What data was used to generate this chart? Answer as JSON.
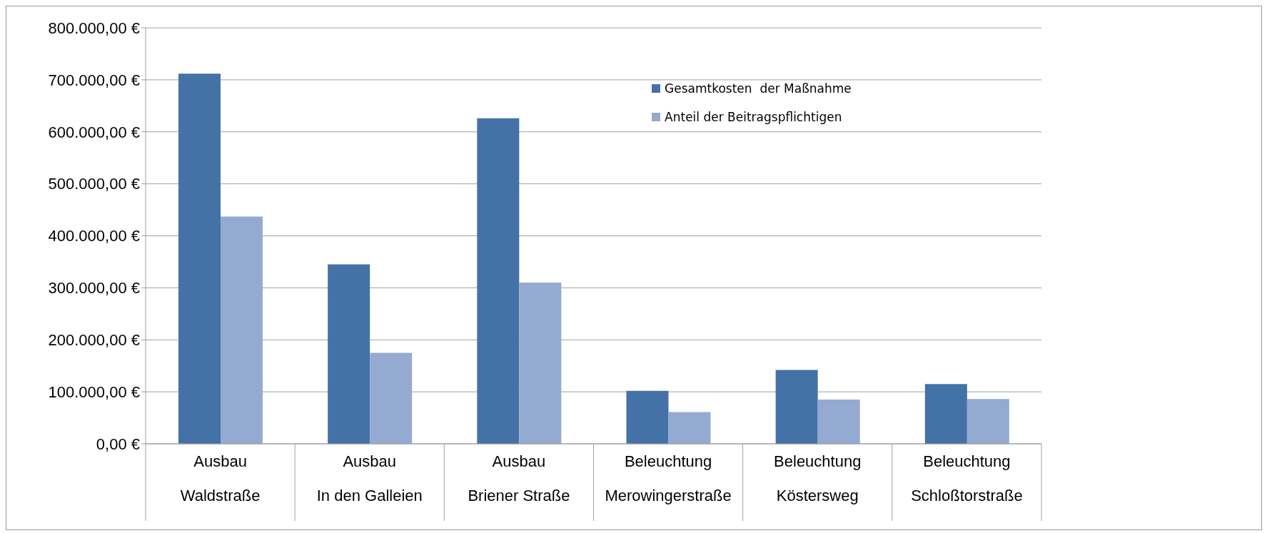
{
  "chart_data": {
    "type": "bar",
    "categories": [
      "Ausbau\nWaldstraße",
      "Ausbau\nIn den Galleien",
      "Ausbau\nBriener Straße",
      "Beleuchtung\nMerowingerstraße",
      "Beleuchtung\nKöstersweg",
      "Beleuchtung\nSchloßtorstraße"
    ],
    "series": [
      {
        "name": "Gesamtkosten  der Maßnahme",
        "color": "#4472a6",
        "values": [
          712000,
          345000,
          626000,
          102000,
          142000,
          115000
        ]
      },
      {
        "name": "Anteil der Beitragspflichtigen",
        "color": "#95aad1",
        "values": [
          437000,
          175000,
          310000,
          61000,
          85000,
          86000
        ]
      }
    ],
    "ylim": [
      0,
      800000
    ],
    "yticks": [
      {
        "value": 0,
        "label": "0,00 €"
      },
      {
        "value": 100000,
        "label": "100.000,00 €"
      },
      {
        "value": 200000,
        "label": "200.000,00 €"
      },
      {
        "value": 300000,
        "label": "300.000,00 €"
      },
      {
        "value": 400000,
        "label": "400.000,00 €"
      },
      {
        "value": 500000,
        "label": "500.000,00 €"
      },
      {
        "value": 600000,
        "label": "600.000,00 €"
      },
      {
        "value": 700000,
        "label": "700.000,00 €"
      },
      {
        "value": 800000,
        "label": "800.000,00 €"
      }
    ],
    "grid": "y",
    "legend": "top"
  }
}
